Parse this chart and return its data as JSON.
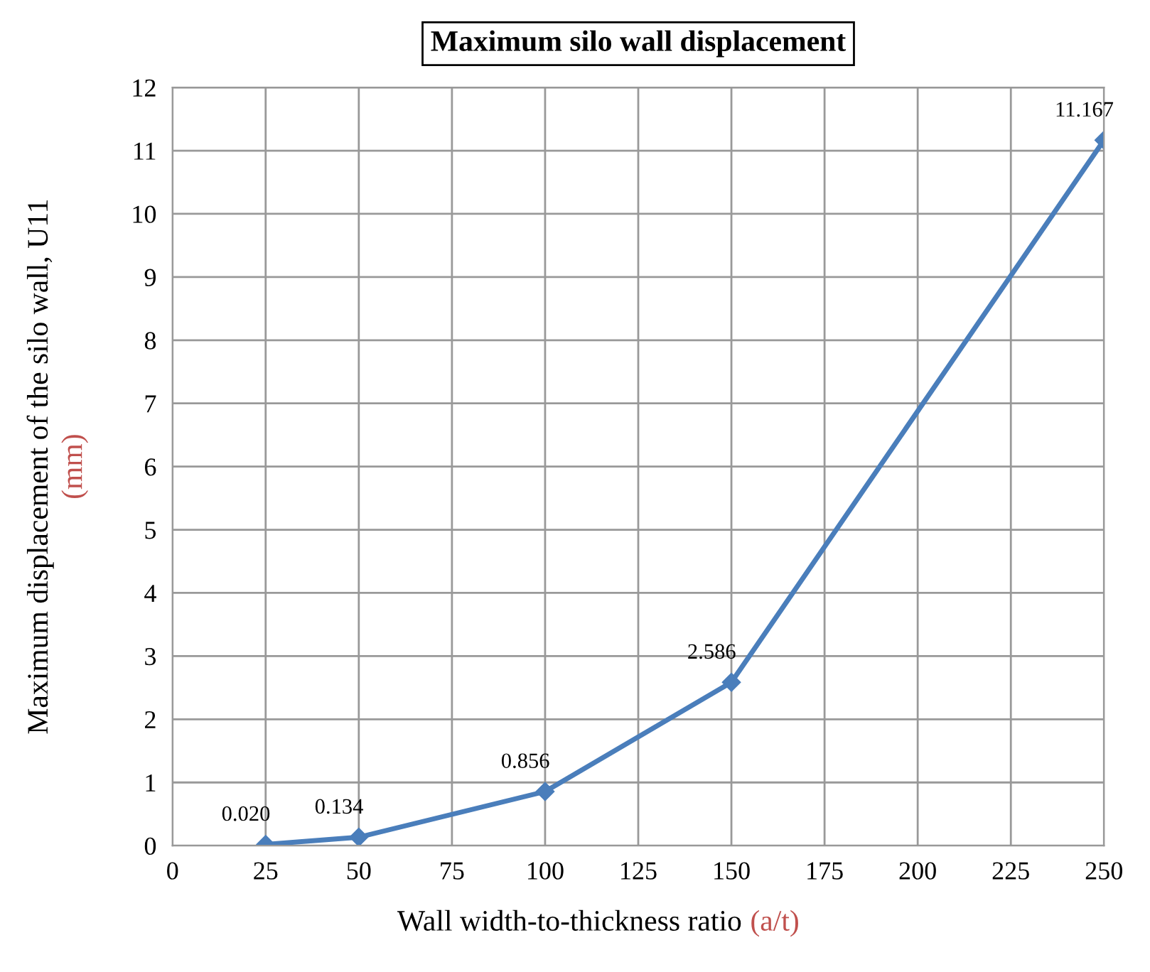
{
  "chart_data": {
    "type": "line",
    "title": "Maximum silo wall displacement",
    "xlabel": "Wall width-to-thickness ratio (a/t)",
    "ylabel": "Maximum displacement of the silo wall, U11\n(mm)",
    "x": [
      25,
      50,
      100,
      150,
      250
    ],
    "series": [
      {
        "color": "#4a7ebb",
        "values": [
          0.02,
          0.134,
          0.856,
          2.586,
          11.167
        ],
        "value_labels": [
          "0.020",
          "0.134",
          "0.856",
          "2.586",
          "11.167"
        ]
      }
    ],
    "xlim": [
      0,
      250
    ],
    "xticks": [
      0,
      25,
      50,
      75,
      100,
      125,
      150,
      175,
      200,
      225,
      250
    ],
    "ylim": [
      0,
      12
    ],
    "yticks": [
      0,
      1,
      2,
      3,
      4,
      5,
      6,
      7,
      8,
      9,
      10,
      11,
      12
    ],
    "grid": true,
    "marker": "diamond",
    "line_style": "solid"
  }
}
